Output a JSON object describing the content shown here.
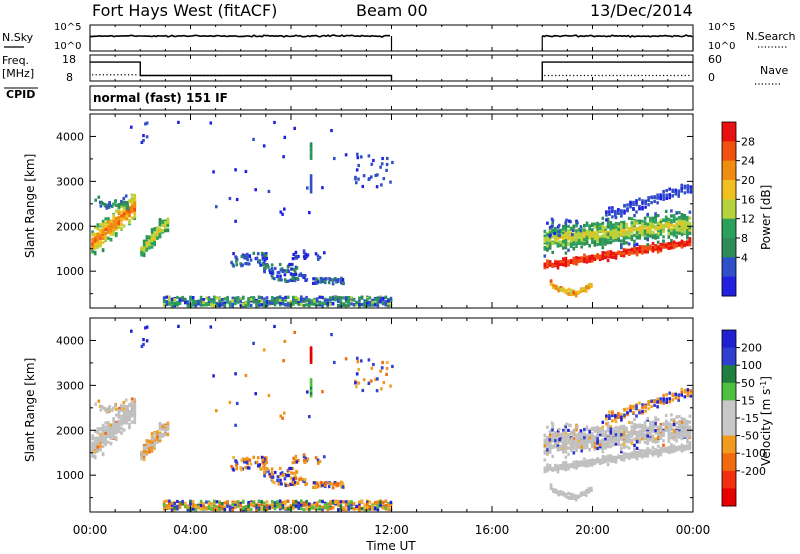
{
  "header": {
    "station": "Fort Hays West (fitACF)",
    "beam": "Beam 00",
    "date": "13/Dec/2014"
  },
  "labels": {
    "nsky": "N.Sky",
    "nsearch": "N.Search",
    "freq": "Freq.",
    "freq_unit": "[MHz]",
    "nave": "Nave",
    "cpid": "CPID",
    "cpid_value": "normal (fast) 151 IF",
    "ylabel": "Slant Range [km]",
    "xlabel": "Time UT",
    "power_label": "Power [dB]",
    "velocity_label": "Velocity [m s",
    "velocity_exp": "-1",
    "velocity_close": "]"
  },
  "colors": {
    "power_scale": [
      "#2020e0",
      "#3050c8",
      "#2e8b57",
      "#2aa05a",
      "#b8d23c",
      "#f0c020",
      "#f08c10",
      "#f05010",
      "#e81010"
    ],
    "velocity_scale": [
      "#2020d0",
      "#2f3fd0",
      "#1f7f3f",
      "#4fbf3f",
      "#c8c8c8",
      "#c8c8c8",
      "#f09a20",
      "#f06a10",
      "#f03010",
      "#e80000"
    ],
    "ground_scatter": "#c0c0c0"
  },
  "chart_data": [
    {
      "type": "line",
      "name": "noise-panel",
      "left_ticks": [
        "10^5",
        "10^0"
      ],
      "right_ticks": [
        "10^5",
        "10^0"
      ],
      "series": [
        {
          "name": "N.Sky",
          "segments": [
            [
              0,
              12
            ],
            [
              18,
              24
            ]
          ],
          "level": "high"
        },
        {
          "name": "N.Search",
          "style": "dotted"
        }
      ]
    },
    {
      "type": "line",
      "name": "freq-panel",
      "left_ticks": [
        18,
        8
      ],
      "right_ticks": [
        60,
        0
      ],
      "series": [
        {
          "name": "Freq.",
          "points": [
            [
              0,
              16.6
            ],
            [
              2,
              16.6
            ],
            [
              2,
              10.5
            ],
            [
              12,
              10.5
            ],
            [
              18,
              16.6
            ],
            [
              24,
              16.6
            ]
          ]
        },
        {
          "name": "Nave",
          "style": "dotted",
          "segments": [
            [
              0,
              2,
              17
            ],
            [
              2,
              12,
              15
            ],
            [
              18,
              24,
              15
            ]
          ]
        }
      ]
    },
    {
      "type": "heatmap",
      "name": "power",
      "xlim": [
        0,
        24
      ],
      "ylim": [
        180,
        4500
      ],
      "x_ticks": [
        "00:00",
        "04:00",
        "08:00",
        "12:00",
        "16:00",
        "20:00",
        "00:00"
      ],
      "y_ticks": [
        1000,
        2000,
        3000,
        4000
      ],
      "colorbar_ticks": [
        4,
        8,
        12,
        16,
        20,
        24,
        28
      ]
    },
    {
      "type": "heatmap",
      "name": "velocity",
      "xlim": [
        0,
        24
      ],
      "ylim": [
        180,
        4500
      ],
      "x_ticks": [
        "00:00",
        "04:00",
        "08:00",
        "12:00",
        "16:00",
        "20:00",
        "00:00"
      ],
      "y_ticks": [
        1000,
        2000,
        3000,
        4000
      ],
      "colorbar_ticks": [
        200,
        100,
        50,
        15,
        -15,
        -50,
        -100,
        -200
      ]
    }
  ]
}
